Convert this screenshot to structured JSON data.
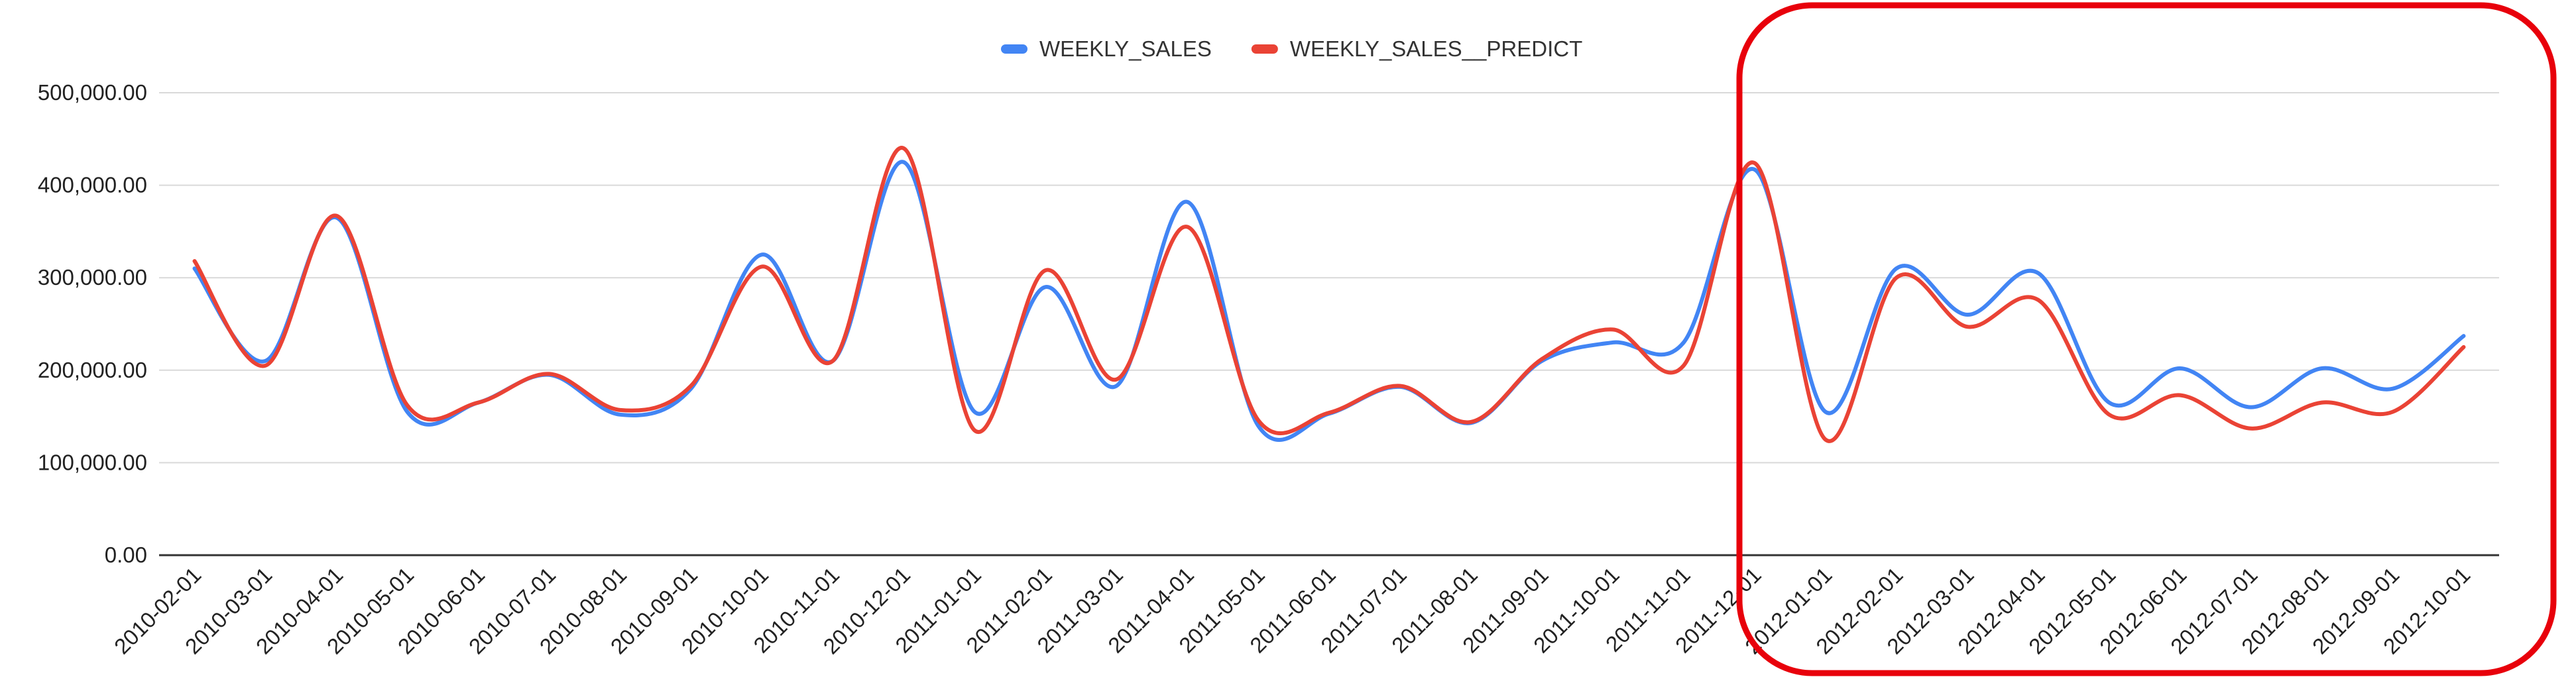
{
  "colors": {
    "series_1": "#4285F4",
    "series_2": "#EA4335",
    "highlight_box": "#E8000B",
    "gridline": "#D9D9D9",
    "axis": "#333333"
  },
  "chart_data": {
    "type": "line",
    "title": "",
    "xlabel": "",
    "ylabel": "",
    "ylim": [
      0,
      500000
    ],
    "y_ticks": [
      0,
      100000,
      200000,
      300000,
      400000,
      500000
    ],
    "y_tick_labels": [
      "0.00",
      "100,000.00",
      "200,000.00",
      "300,000.00",
      "400,000.00",
      "500,000.00"
    ],
    "grid": true,
    "legend_position": "top-center",
    "categories": [
      "2010-02-01",
      "2010-03-01",
      "2010-04-01",
      "2010-05-01",
      "2010-06-01",
      "2010-07-01",
      "2010-08-01",
      "2010-09-01",
      "2010-10-01",
      "2010-11-01",
      "2010-12-01",
      "2011-01-01",
      "2011-02-01",
      "2011-03-01",
      "2011-04-01",
      "2011-05-01",
      "2011-06-01",
      "2011-07-01",
      "2011-08-01",
      "2011-09-01",
      "2011-10-01",
      "2011-11-01",
      "2011-12-01",
      "2012-01-01",
      "2012-02-01",
      "2012-03-01",
      "2012-04-01",
      "2012-05-01",
      "2012-06-01",
      "2012-07-01",
      "2012-08-01",
      "2012-09-01",
      "2012-10-01"
    ],
    "series": [
      {
        "name": "WEEKLY_SALES",
        "color": "#4285F4",
        "values": [
          310000,
          210000,
          365000,
          155000,
          165000,
          195000,
          152000,
          180000,
          325000,
          210000,
          425000,
          155000,
          290000,
          183000,
          382000,
          140000,
          153000,
          182000,
          143000,
          210000,
          230000,
          230000,
          417000,
          155000,
          310000,
          260000,
          305000,
          165000,
          202000,
          160000,
          202000,
          180000,
          237000
        ]
      },
      {
        "name": "WEEKLY_SALES__PREDICT",
        "color": "#EA4335",
        "values": [
          318000,
          205000,
          367000,
          162000,
          165000,
          196000,
          157000,
          183000,
          312000,
          210000,
          440000,
          135000,
          308000,
          190000,
          355000,
          146000,
          154000,
          183000,
          144000,
          212000,
          244000,
          205000,
          424000,
          125000,
          300000,
          247000,
          276000,
          152000,
          173000,
          137000,
          165000,
          155000,
          225000
        ]
      }
    ]
  }
}
